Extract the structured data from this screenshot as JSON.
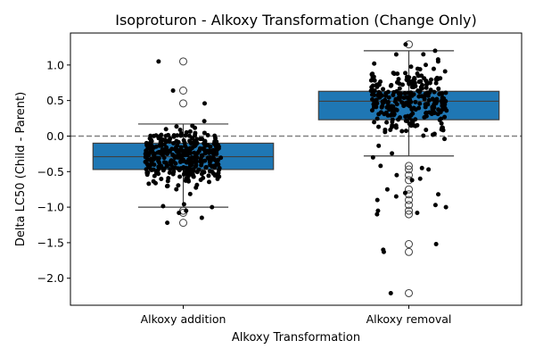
{
  "chart_data": {
    "type": "box",
    "title": "Isoproturon - Alkoxy Transformation (Change Only)",
    "xlabel": "Alkoxy Transformation",
    "ylabel": "Delta LC50 (Child - Parent)",
    "categories": [
      "Alkoxy addition",
      "Alkoxy removal"
    ],
    "ylim": [
      -2.38,
      1.45
    ],
    "yticks": [
      1.0,
      0.5,
      0.0,
      -0.5,
      -1.0,
      -1.5,
      -2.0
    ],
    "ytick_labels": [
      "1.0",
      "0.5",
      "0.0",
      "−0.5",
      "−1.0",
      "−1.5",
      "−2.0"
    ],
    "reference_line": {
      "y": 0.0,
      "style": "dashed",
      "color": "#808080"
    },
    "box_color": "#1f77b4",
    "point_color": "#000000",
    "grid": false,
    "legend": "none",
    "boxes": [
      {
        "name": "Alkoxy addition",
        "q1": -0.47,
        "median": -0.29,
        "q3": -0.1,
        "whisker_low": -1.0,
        "whisker_high": 0.17,
        "outliers": [
          1.05,
          0.64,
          0.46,
          -1.05,
          -1.08,
          -1.22
        ],
        "points": {
          "count": 360,
          "center": -0.29,
          "spread": 0.2,
          "min": -1.22,
          "max": 1.05,
          "extra": [
            -1.22,
            -1.15,
            -1.08,
            -1.05,
            -1.0,
            -0.96,
            0.46,
            0.64,
            1.05
          ]
        }
      },
      {
        "name": "Alkoxy removal",
        "q1": 0.23,
        "median": 0.49,
        "q3": 0.63,
        "whisker_low": -0.28,
        "whisker_high": 1.2,
        "outliers": [
          1.29,
          -0.42,
          -0.47,
          -0.55,
          -0.62,
          -0.75,
          -0.82,
          -0.9,
          -0.97,
          -1.05,
          -1.1,
          -1.52,
          -1.63,
          -2.21
        ],
        "points": {
          "count": 280,
          "center": 0.49,
          "spread": 0.22,
          "min": -2.21,
          "max": 1.29,
          "extra": [
            1.29,
            1.2,
            1.15,
            -0.42,
            -0.47,
            -0.55,
            -0.62,
            -0.75,
            -0.82,
            -0.9,
            -0.97,
            -1.0,
            -1.05,
            -1.1,
            -1.52,
            -1.63,
            -2.21,
            -0.3,
            -0.45,
            -0.6,
            -0.8,
            -0.85,
            -1.08,
            -1.6
          ]
        }
      }
    ]
  }
}
